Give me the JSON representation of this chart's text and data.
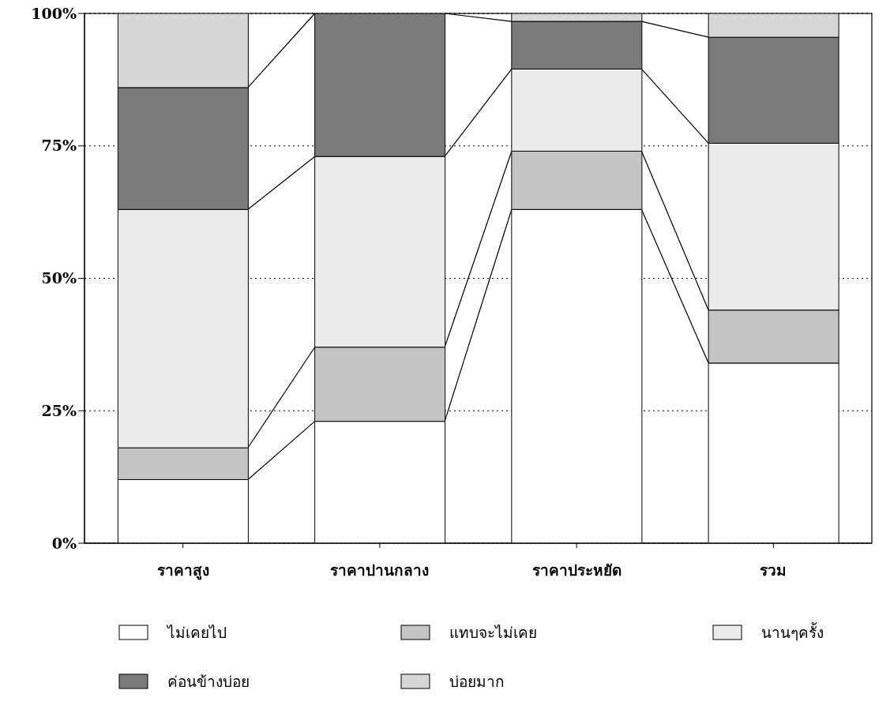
{
  "chart_data": {
    "type": "bar",
    "stacked": true,
    "categories": [
      "ราคาสูง",
      "ราคาปานกลาง",
      "ราคาประหยัด",
      "รวม"
    ],
    "series": [
      {
        "name": "ไม่เคยไป",
        "color": "#ffffff",
        "values": [
          12,
          23,
          63,
          34
        ]
      },
      {
        "name": "แทบจะไม่เคย",
        "color": "#c4c4c4",
        "values": [
          6,
          14,
          11,
          10
        ]
      },
      {
        "name": "นานๆครั้ง",
        "color": "#ebebeb",
        "values": [
          45,
          36,
          15.5,
          31.5
        ]
      },
      {
        "name": "ค่อนข้างบ่อย",
        "color": "#7a7a7a",
        "values": [
          23,
          27,
          9,
          20
        ]
      },
      {
        "name": "บ่อยมาก",
        "color": "#d6d6d6",
        "values": [
          14,
          0,
          1.5,
          4.5
        ]
      }
    ],
    "ylim": [
      0,
      100
    ],
    "yticks": [
      {
        "value": 0,
        "label": "0%"
      },
      {
        "value": 25,
        "label": "25%"
      },
      {
        "value": 50,
        "label": "50%"
      },
      {
        "value": 75,
        "label": "75%"
      },
      {
        "value": 100,
        "label": "100%"
      }
    ],
    "grid": "y",
    "legend": "bottom"
  }
}
